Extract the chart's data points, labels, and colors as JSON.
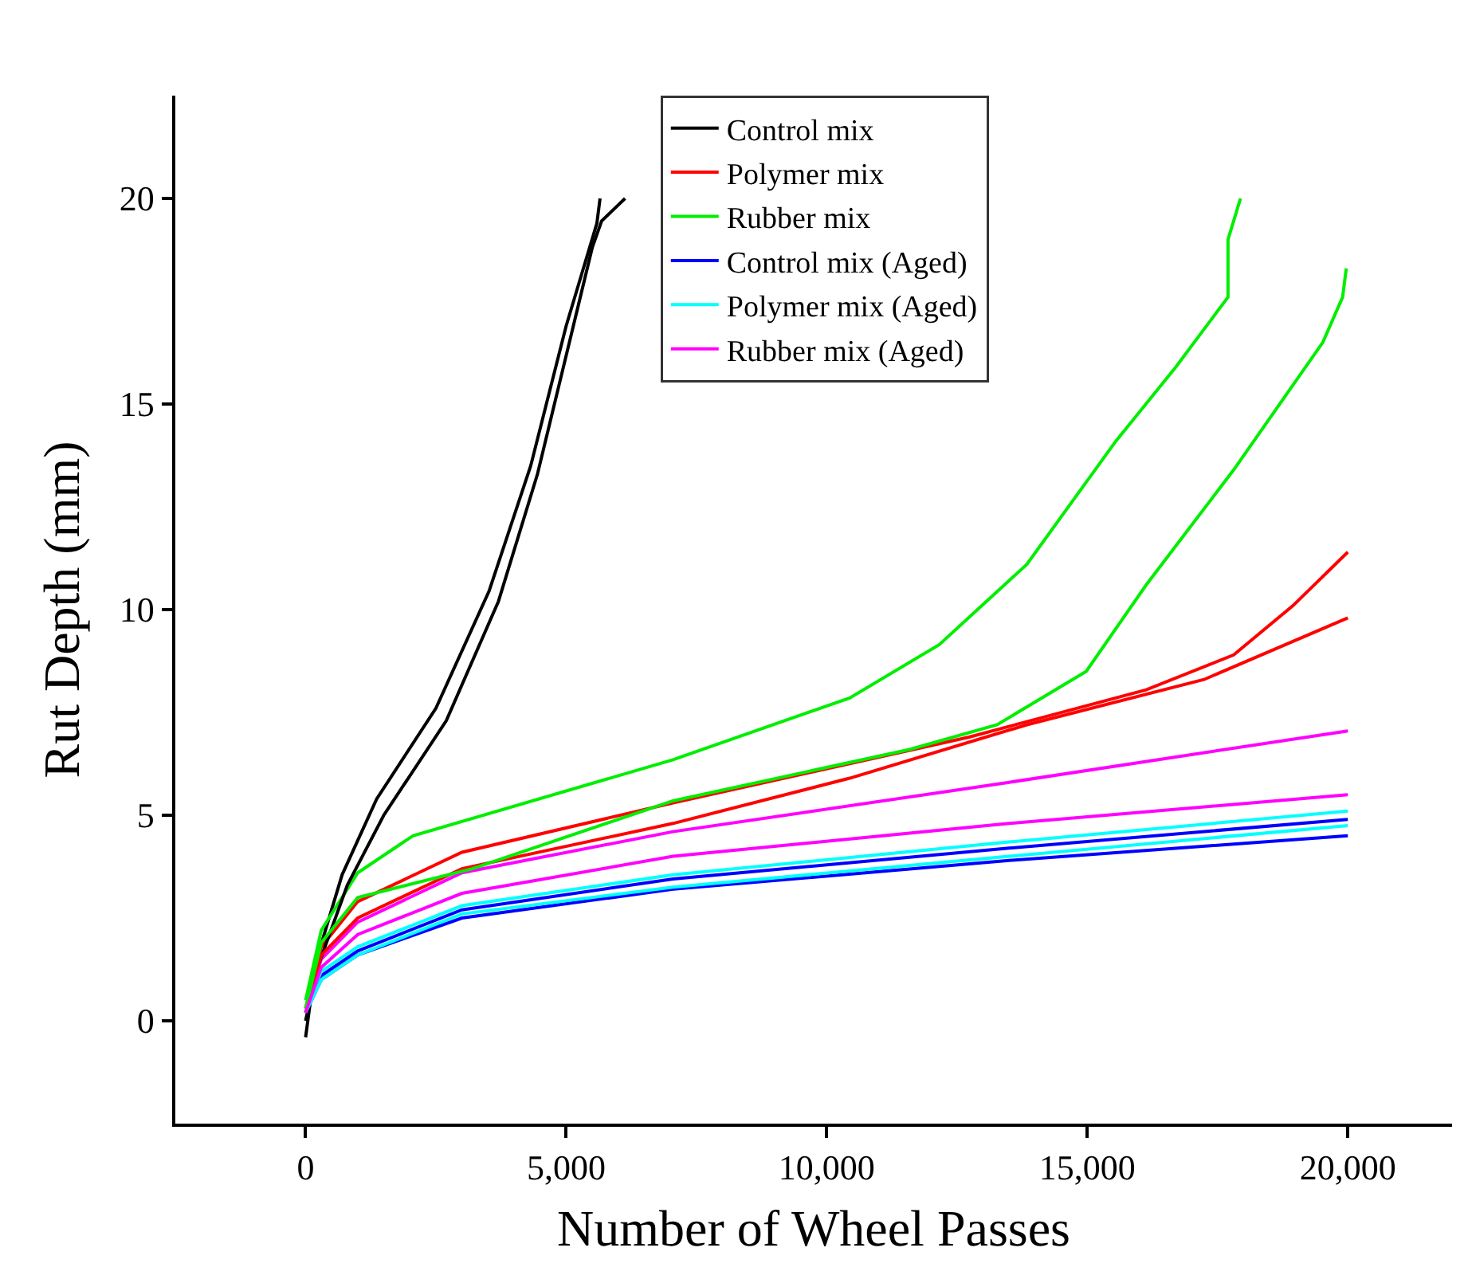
{
  "chart_data": {
    "type": "line",
    "xlabel": "Number of Wheel Passes",
    "ylabel": "Rut Depth (mm)",
    "xlim": [
      -2500,
      22000
    ],
    "ylim": [
      -2.5,
      22.5
    ],
    "xticks": [
      {
        "value": 0,
        "label": "0"
      },
      {
        "value": 5000,
        "label": "5,000"
      },
      {
        "value": 10000,
        "label": "10,000"
      },
      {
        "value": 15000,
        "label": "15,000"
      },
      {
        "value": 20000,
        "label": "20,000"
      }
    ],
    "yticks": [
      0,
      5,
      10,
      15,
      20
    ],
    "legend": "top",
    "line_style": "solid",
    "marker": "none",
    "series": [
      {
        "name": "Control mix",
        "color": "#000000",
        "x": [
          0,
          190,
          700,
          1365,
          2500,
          3520,
          4320,
          5000,
          5590,
          5650
        ],
        "values": [
          -0.4,
          1.4,
          3.55,
          5.4,
          7.6,
          10.45,
          13.5,
          16.9,
          19.4,
          20
        ]
      },
      {
        "name": "Polymer mix",
        "color": "#ff0000",
        "x": [
          0,
          300,
          1000,
          3000,
          7050,
          12730,
          16130,
          17810,
          18950,
          20000
        ],
        "values": [
          0.3,
          1.8,
          2.9,
          4.1,
          5.3,
          6.9,
          8.05,
          8.9,
          10.1,
          11.4
        ]
      },
      {
        "name": "Rubber mix",
        "color": "#00ee00",
        "x": [
          0,
          300,
          1000,
          2060,
          7050,
          10440,
          12160,
          13840,
          15550,
          16700,
          17700,
          17700,
          17940
        ],
        "values": [
          0.5,
          2.2,
          3.6,
          4.5,
          6.35,
          7.85,
          9.15,
          11.1,
          14.1,
          15.9,
          17.6,
          19.0,
          20
        ]
      },
      {
        "name": "Control mix (Aged)",
        "color": "#0000ff",
        "x": [
          0,
          300,
          1000,
          3000,
          7050,
          13500,
          20000
        ],
        "values": [
          0.2,
          1.1,
          1.7,
          2.7,
          3.45,
          4.2,
          4.9
        ]
      },
      {
        "name": "Polymer mix (Aged)",
        "color": "#00ffff",
        "x": [
          0,
          300,
          1000,
          3000,
          7050,
          13500,
          20000
        ],
        "values": [
          0.3,
          1.2,
          1.8,
          2.8,
          3.55,
          4.35,
          5.1
        ]
      },
      {
        "name": "Rubber mix (Aged)",
        "color": "#ff00ff",
        "x": [
          0,
          300,
          1000,
          3000,
          7050,
          13500,
          20000
        ],
        "values": [
          0.3,
          1.5,
          2.4,
          3.6,
          4.6,
          5.8,
          7.05
        ]
      },
      {
        "color": "#000000",
        "x": [
          0,
          200,
          800,
          1500,
          2700,
          3700,
          4450,
          5100,
          5500,
          5680,
          6130
        ],
        "values": [
          0,
          1.2,
          3.3,
          5.0,
          7.3,
          10.2,
          13.3,
          16.7,
          18.8,
          19.45,
          20
        ]
      },
      {
        "color": "#ff0000",
        "x": [
          0,
          300,
          1000,
          3000,
          7050,
          10440,
          13840,
          17240,
          20000
        ],
        "values": [
          0.2,
          1.6,
          2.5,
          3.7,
          4.8,
          5.9,
          7.2,
          8.3,
          9.8
        ]
      },
      {
        "color": "#00ee00",
        "x": [
          0,
          300,
          1000,
          3200,
          7050,
          11590,
          13270,
          14980,
          16130,
          17810,
          19520,
          19900,
          19970
        ],
        "values": [
          0.3,
          1.9,
          3.0,
          3.7,
          5.35,
          6.6,
          7.2,
          8.5,
          10.6,
          13.4,
          16.5,
          17.6,
          18.3
        ]
      },
      {
        "color": "#0000ff",
        "x": [
          0,
          300,
          1000,
          3000,
          7050,
          13500,
          20000
        ],
        "values": [
          0.2,
          1.0,
          1.6,
          2.5,
          3.2,
          3.9,
          4.5
        ]
      },
      {
        "color": "#00ffff",
        "x": [
          0,
          300,
          1000,
          3000,
          7050,
          13500,
          20000
        ],
        "values": [
          0.2,
          1.0,
          1.6,
          2.6,
          3.25,
          4.0,
          4.75
        ]
      },
      {
        "color": "#ff00ff",
        "x": [
          0,
          300,
          1000,
          3000,
          7050,
          13500,
          20000
        ],
        "values": [
          0.2,
          1.3,
          2.1,
          3.1,
          4.0,
          4.8,
          5.5
        ]
      }
    ]
  }
}
